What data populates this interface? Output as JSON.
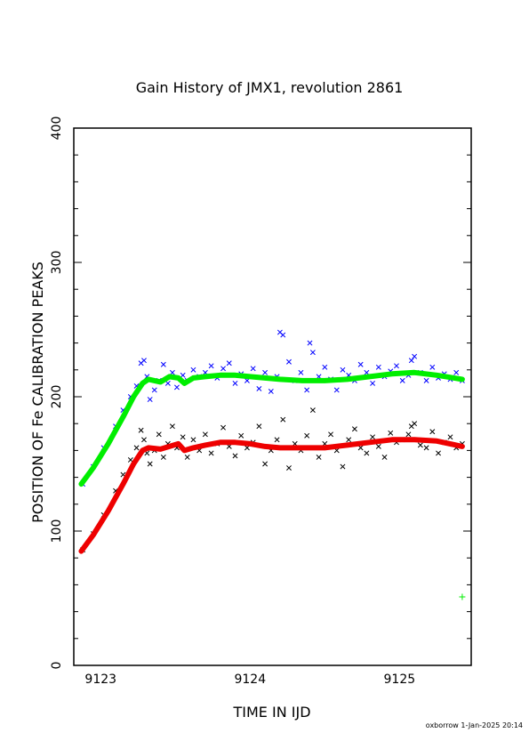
{
  "chart_data": {
    "type": "scatter",
    "title": "Gain History of JMX1, revolution 2861",
    "xlabel": "TIME IN IJD",
    "ylabel": "POSITION OF Fe CALIBRATION PEAKS",
    "xlim": [
      9122.82,
      9125.48
    ],
    "ylim": [
      0,
      400
    ],
    "x_ticks": [
      9123,
      9124,
      9125
    ],
    "y_ticks": [
      0,
      100,
      200,
      300,
      400
    ],
    "grid": false,
    "footer": "oxborrow 1-Jan-2025 20:14",
    "colors": {
      "upper_points": "#0000ff",
      "lower_points": "#000000",
      "upper_fit": "#00ee00",
      "lower_fit": "#ee0000",
      "marker": "#00ee00",
      "axis": "#000000"
    },
    "series": [
      {
        "role": "upper-points",
        "marker": "x",
        "color": "#0000ff",
        "x": [
          9122.88,
          9122.95,
          9123.02,
          9123.1,
          9123.15,
          9123.2,
          9123.24,
          9123.27,
          9123.29,
          9123.31,
          9123.33,
          9123.36,
          9123.39,
          9123.42,
          9123.45,
          9123.48,
          9123.51,
          9123.55,
          9123.58,
          9123.62,
          9123.66,
          9123.7,
          9123.74,
          9123.78,
          9123.82,
          9123.86,
          9123.9,
          9123.94,
          9123.98,
          9124.02,
          9124.06,
          9124.1,
          9124.14,
          9124.18,
          9124.2,
          9124.22,
          9124.26,
          9124.3,
          9124.34,
          9124.38,
          9124.4,
          9124.42,
          9124.46,
          9124.5,
          9124.54,
          9124.58,
          9124.62,
          9124.66,
          9124.7,
          9124.74,
          9124.78,
          9124.82,
          9124.86,
          9124.9,
          9124.94,
          9124.98,
          9125.02,
          9125.06,
          9125.08,
          9125.1,
          9125.14,
          9125.18,
          9125.22,
          9125.26,
          9125.3,
          9125.34,
          9125.38,
          9125.42
        ],
        "y": [
          135,
          148,
          162,
          178,
          190,
          200,
          208,
          225,
          227,
          215,
          198,
          205,
          212,
          224,
          210,
          218,
          207,
          216,
          212,
          220,
          215,
          218,
          223,
          214,
          221,
          225,
          210,
          217,
          212,
          221,
          206,
          218,
          204,
          215,
          248,
          246,
          226,
          212,
          218,
          205,
          240,
          233,
          215,
          222,
          213,
          205,
          220,
          216,
          212,
          224,
          218,
          210,
          222,
          215,
          219,
          223,
          212,
          216,
          227,
          230,
          218,
          212,
          222,
          214,
          217,
          213,
          218,
          212
        ]
      },
      {
        "role": "lower-points",
        "marker": "x",
        "color": "#000000",
        "x": [
          9122.88,
          9122.95,
          9123.02,
          9123.1,
          9123.15,
          9123.2,
          9123.24,
          9123.27,
          9123.29,
          9123.31,
          9123.33,
          9123.36,
          9123.39,
          9123.42,
          9123.45,
          9123.48,
          9123.51,
          9123.55,
          9123.58,
          9123.62,
          9123.66,
          9123.7,
          9123.74,
          9123.78,
          9123.82,
          9123.86,
          9123.9,
          9123.94,
          9123.98,
          9124.02,
          9124.06,
          9124.1,
          9124.14,
          9124.18,
          9124.22,
          9124.26,
          9124.3,
          9124.34,
          9124.38,
          9124.42,
          9124.46,
          9124.5,
          9124.54,
          9124.58,
          9124.62,
          9124.66,
          9124.7,
          9124.74,
          9124.78,
          9124.82,
          9124.86,
          9124.9,
          9124.94,
          9124.98,
          9125.02,
          9125.06,
          9125.08,
          9125.1,
          9125.14,
          9125.18,
          9125.22,
          9125.26,
          9125.3,
          9125.34,
          9125.38,
          9125.42
        ],
        "y": [
          86,
          98,
          112,
          130,
          142,
          153,
          162,
          175,
          168,
          158,
          150,
          160,
          172,
          155,
          165,
          178,
          162,
          170,
          155,
          168,
          160,
          172,
          158,
          165,
          177,
          163,
          156,
          171,
          162,
          166,
          178,
          150,
          160,
          168,
          183,
          147,
          165,
          160,
          171,
          190,
          155,
          165,
          172,
          160,
          148,
          168,
          176,
          162,
          158,
          170,
          163,
          155,
          173,
          166,
          168,
          172,
          178,
          180,
          164,
          162,
          174,
          158,
          166,
          170,
          162,
          165
        ]
      },
      {
        "role": "upper-fit",
        "color": "#00ee00",
        "x": [
          9122.87,
          9122.95,
          9123.05,
          9123.15,
          9123.22,
          9123.28,
          9123.32,
          9123.4,
          9123.46,
          9123.52,
          9123.56,
          9123.62,
          9123.7,
          9123.8,
          9123.9,
          9124.0,
          9124.1,
          9124.2,
          9124.35,
          9124.5,
          9124.65,
          9124.8,
          9124.95,
          9125.1,
          9125.25,
          9125.42
        ],
        "y": [
          135,
          147,
          165,
          185,
          200,
          210,
          213,
          211,
          215,
          214,
          210,
          214,
          215,
          216,
          216,
          215,
          214,
          213,
          212,
          212,
          213,
          215,
          217,
          218,
          216,
          213
        ]
      },
      {
        "role": "lower-fit",
        "color": "#ee0000",
        "x": [
          9122.87,
          9122.95,
          9123.05,
          9123.15,
          9123.22,
          9123.28,
          9123.32,
          9123.4,
          9123.46,
          9123.52,
          9123.56,
          9123.62,
          9123.7,
          9123.8,
          9123.9,
          9124.0,
          9124.1,
          9124.2,
          9124.35,
          9124.5,
          9124.65,
          9124.8,
          9124.95,
          9125.1,
          9125.25,
          9125.42
        ],
        "y": [
          85,
          97,
          115,
          135,
          150,
          160,
          162,
          161,
          163,
          165,
          160,
          162,
          164,
          166,
          166,
          165,
          163,
          162,
          162,
          162,
          164,
          166,
          168,
          168,
          167,
          163
        ]
      },
      {
        "role": "marker",
        "marker": "+",
        "color": "#00ee00",
        "x": [
          9125.42
        ],
        "y": [
          51
        ]
      }
    ]
  }
}
